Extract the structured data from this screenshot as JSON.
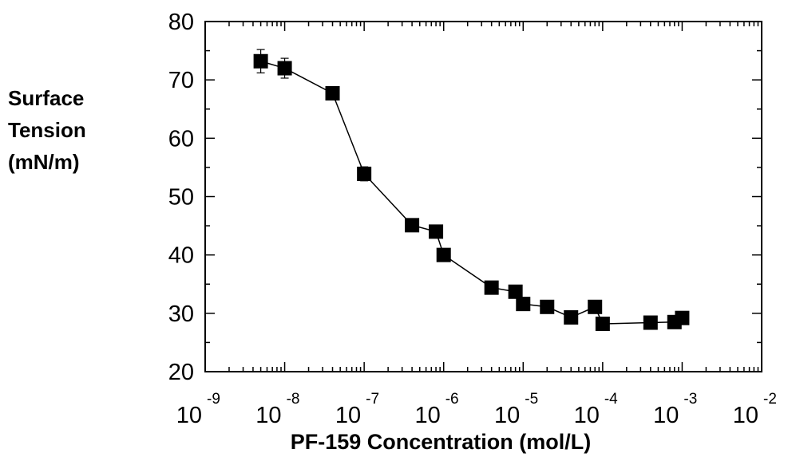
{
  "chart_data": {
    "type": "scatter",
    "xlabel": "PF-159 Concentration (mol/L)",
    "ylabel_lines": [
      "Surface",
      "Tension",
      "(mN/m)"
    ],
    "x_scale": "log",
    "xlim": [
      1e-09,
      0.01
    ],
    "ylim": [
      20,
      80
    ],
    "x_ticks": [
      {
        "base": "10",
        "exp": "-9"
      },
      {
        "base": "10",
        "exp": "-8"
      },
      {
        "base": "10",
        "exp": "-7"
      },
      {
        "base": "10",
        "exp": "-6"
      },
      {
        "base": "10",
        "exp": "-5"
      },
      {
        "base": "10",
        "exp": "-4"
      },
      {
        "base": "10",
        "exp": "-3"
      },
      {
        "base": "10",
        "exp": "-2"
      }
    ],
    "y_ticks": [
      "20",
      "30",
      "40",
      "50",
      "60",
      "70",
      "80"
    ],
    "grid": false,
    "marker": "square",
    "line": true,
    "series": [
      {
        "points": [
          {
            "x": 5e-09,
            "y": 73.2,
            "err": 2.0
          },
          {
            "x": 1e-08,
            "y": 72.0,
            "err": 1.7
          },
          {
            "x": 4e-08,
            "y": 67.7,
            "err": 0.8
          },
          {
            "x": 1e-07,
            "y": 53.9,
            "err": 1.2
          },
          {
            "x": 4e-07,
            "y": 45.1,
            "err": 0.4
          },
          {
            "x": 8e-07,
            "y": 44.0,
            "err": 0.3
          },
          {
            "x": 1e-06,
            "y": 40.0,
            "err": 0.3
          },
          {
            "x": 4e-06,
            "y": 34.4,
            "err": 0.4
          },
          {
            "x": 8e-06,
            "y": 33.7,
            "err": 0.3
          },
          {
            "x": 1e-05,
            "y": 31.6,
            "err": 0.3
          },
          {
            "x": 2e-05,
            "y": 31.1,
            "err": 0.3
          },
          {
            "x": 4e-05,
            "y": 29.3,
            "err": 0.3
          },
          {
            "x": 8e-05,
            "y": 31.1,
            "err": 0.3
          },
          {
            "x": 0.0001,
            "y": 28.2,
            "err": 0.3
          },
          {
            "x": 0.0004,
            "y": 28.4,
            "err": 0.3
          },
          {
            "x": 0.0008,
            "y": 28.5,
            "err": 0.3
          },
          {
            "x": 0.001,
            "y": 29.2,
            "err": 0.3
          }
        ]
      }
    ]
  }
}
